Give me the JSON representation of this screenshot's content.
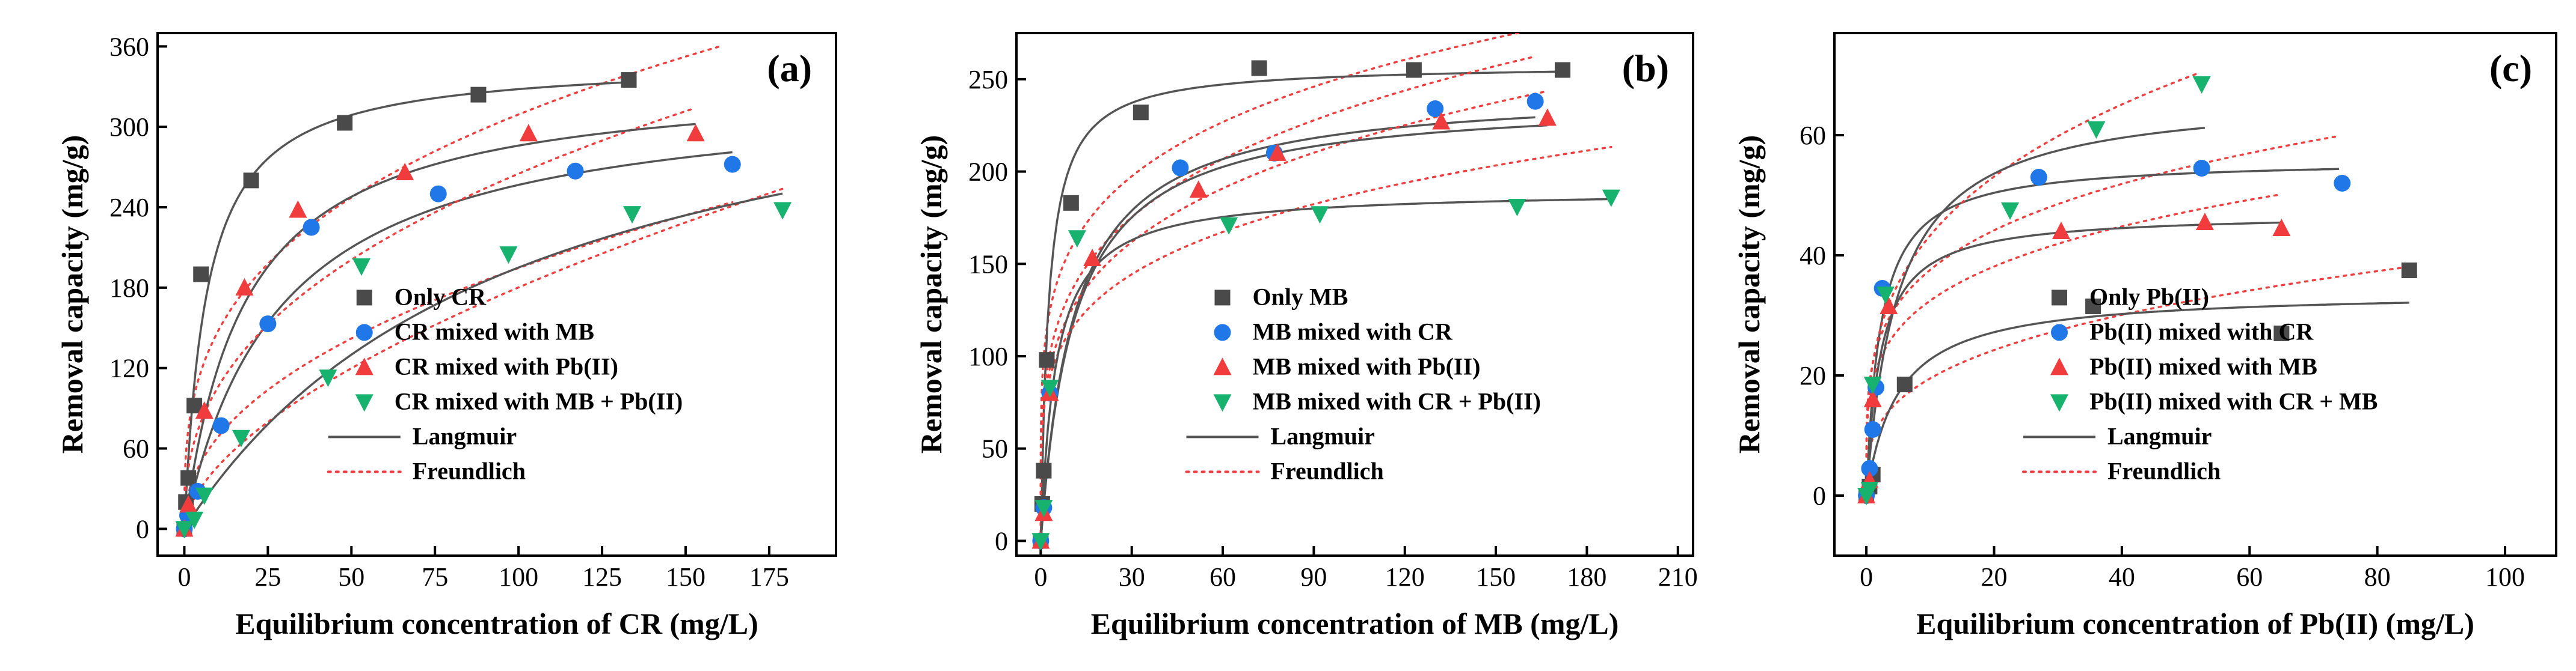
{
  "figure": {
    "panel_count": 3
  },
  "chart_data": [
    {
      "type": "scatter",
      "panel_label": "(a)",
      "xlabel": "Equilibrium concentration of CR (mg/L)",
      "ylabel": "Removal capacity (mg/g)",
      "xlim": [
        -8,
        195
      ],
      "ylim": [
        -20,
        370
      ],
      "xticks": [
        0,
        25,
        50,
        75,
        100,
        125,
        150,
        175
      ],
      "yticks": [
        0,
        60,
        120,
        180,
        240,
        300,
        360
      ],
      "legend_position": "bottom-center",
      "series": [
        {
          "name": "Only CR",
          "marker": "square",
          "color": "#4a4a4a",
          "x": [
            0,
            0.5,
            1.2,
            3,
            5,
            20,
            48,
            88,
            133
          ],
          "y": [
            0,
            20,
            38,
            92,
            190,
            260,
            303,
            324,
            335
          ],
          "langmuir": {
            "qm": 350,
            "kl": 0.15,
            "xmax": 133
          },
          "freundlich": {
            "kf": 70,
            "n": 3.1,
            "xmax": 160
          }
        },
        {
          "name": "CR mixed with MB",
          "marker": "circle",
          "color": "#1f77e8",
          "x": [
            0,
            1,
            4,
            11,
            25,
            38,
            76,
            117,
            164
          ],
          "y": [
            0,
            10,
            28,
            77,
            153,
            225,
            250,
            267,
            272
          ],
          "langmuir": {
            "qm": 330,
            "kl": 0.035,
            "xmax": 164
          },
          "freundlich": {
            "kf": 24,
            "n": 2.2,
            "xmax": 164
          }
        },
        {
          "name": "CR mixed with Pb(II)",
          "marker": "triangle-up",
          "color": "#f03c3c",
          "x": [
            0,
            1.2,
            6,
            18,
            34,
            66,
            103,
            153
          ],
          "y": [
            0,
            18,
            88,
            180,
            238,
            266,
            295,
            295
          ],
          "langmuir": {
            "qm": 338,
            "kl": 0.055,
            "xmax": 153
          },
          "freundlich": {
            "kf": 42,
            "n": 2.5,
            "xmax": 153
          }
        },
        {
          "name": "CR mixed with MB + Pb(II)",
          "marker": "triangle-down",
          "color": "#16b26e",
          "x": [
            0,
            3,
            6,
            17,
            43,
            53,
            97,
            134,
            179
          ],
          "y": [
            0,
            7,
            25,
            68,
            113,
            196,
            205,
            235,
            238
          ],
          "langmuir": {
            "qm": 390,
            "kl": 0.01,
            "xmax": 179
          },
          "freundlich": {
            "kf": 12,
            "n": 1.7,
            "xmax": 179
          }
        }
      ],
      "legend_entries": [
        "Only CR",
        "CR mixed with MB",
        "CR mixed with Pb(II)",
        "CR mixed with MB + Pb(II)",
        "Langmuir",
        "Freundlich"
      ]
    },
    {
      "type": "scatter",
      "panel_label": "(b)",
      "xlabel": "Equilibrium concentration of MB (mg/L)",
      "ylabel": "Removal  capacity (mg/g)",
      "xlim": [
        -8,
        215
      ],
      "ylim": [
        -8,
        275
      ],
      "xticks": [
        0,
        30,
        60,
        90,
        120,
        150,
        180,
        210
      ],
      "yticks": [
        0,
        50,
        100,
        150,
        200,
        250
      ],
      "legend_position": "bottom-center",
      "series": [
        {
          "name": "Only MB",
          "marker": "square",
          "color": "#4a4a4a",
          "x": [
            0,
            0.5,
            1,
            2,
            10,
            33,
            72,
            123,
            172
          ],
          "y": [
            0,
            20,
            38,
            98,
            183,
            232,
            256,
            255,
            255
          ],
          "langmuir": {
            "qm": 258,
            "kl": 0.38,
            "xmax": 172
          },
          "freundlich": {
            "kf": 100,
            "n": 5,
            "xmax": 170
          }
        },
        {
          "name": "MB mixed with CR",
          "marker": "circle",
          "color": "#1f77e8",
          "x": [
            0,
            1,
            3,
            46,
            77,
            130,
            163
          ],
          "y": [
            0,
            18,
            80,
            202,
            210,
            234,
            238
          ],
          "langmuir": {
            "qm": 245,
            "kl": 0.09,
            "xmax": 163
          },
          "freundlich": {
            "kf": 78,
            "n": 4.2,
            "xmax": 163
          }
        },
        {
          "name": "MB mixed with Pb(II)",
          "marker": "triangle-up",
          "color": "#f03c3c",
          "x": [
            0,
            1,
            3,
            17,
            52,
            78,
            132,
            167
          ],
          "y": [
            0,
            15,
            80,
            153,
            190,
            210,
            227,
            229
          ],
          "langmuir": {
            "qm": 240,
            "kl": 0.09,
            "xmax": 167
          },
          "freundlich": {
            "kf": 72,
            "n": 4.2,
            "xmax": 167
          }
        },
        {
          "name": "MB mixed with CR + Pb(II)",
          "marker": "triangle-down",
          "color": "#16b26e",
          "x": [
            0,
            1,
            3,
            12,
            62,
            92,
            157,
            188
          ],
          "y": [
            0,
            18,
            83,
            164,
            171,
            177,
            181,
            186
          ],
          "langmuir": {
            "qm": 190,
            "kl": 0.2,
            "xmax": 188
          },
          "freundlich": {
            "kf": 70,
            "n": 4.7,
            "xmax": 188
          }
        }
      ],
      "legend_entries": [
        "Only MB",
        "MB mixed with CR",
        "MB mixed with Pb(II)",
        "MB mixed with CR + Pb(II)",
        "Langmuir",
        "Freundlich"
      ]
    },
    {
      "type": "scatter",
      "panel_label": "(c)",
      "xlabel": "Equilibrium concentration of Pb(II) (mg/L)",
      "ylabel": "Removal capacity (mg/g)",
      "xlim": [
        -5,
        108
      ],
      "ylim": [
        -10,
        77
      ],
      "xticks": [
        0,
        20,
        40,
        60,
        80,
        100
      ],
      "yticks": [
        0,
        20,
        40,
        60
      ],
      "legend_position": "bottom-center",
      "series": [
        {
          "name": "Only Pb(II)",
          "marker": "square",
          "color": "#4a4a4a",
          "x": [
            0,
            0.5,
            1,
            6,
            35.5,
            65,
            85
          ],
          "y": [
            0,
            1.5,
            3.5,
            18.5,
            31.5,
            27,
            37.5
          ],
          "langmuir": {
            "qm": 34,
            "kl": 0.2,
            "xmax": 85
          },
          "freundlich": {
            "kf": 9.5,
            "n": 3.2,
            "xmax": 85
          }
        },
        {
          "name": "Pb(II) mixed with CR",
          "marker": "circle",
          "color": "#1f77e8",
          "x": [
            0,
            0.5,
            1,
            1.5,
            2.5,
            27,
            52.5,
            74.5
          ],
          "y": [
            0,
            4.5,
            11,
            18,
            34.5,
            53,
            54.5,
            52
          ],
          "langmuir": {
            "qm": 56,
            "kl": 0.45,
            "xmax": 74
          },
          "freundlich": {
            "kf": 22,
            "n": 4.3,
            "xmax": 74
          }
        },
        {
          "name": "Pb(II) mixed with MB",
          "marker": "triangle-up",
          "color": "#f03c3c",
          "x": [
            0,
            0.5,
            1,
            3.5,
            30.5,
            53,
            65
          ],
          "y": [
            0,
            2.5,
            16,
            31.5,
            44,
            45.5,
            44.5
          ],
          "langmuir": {
            "qm": 47,
            "kl": 0.45,
            "xmax": 65
          },
          "freundlich": {
            "kf": 19,
            "n": 4.3,
            "xmax": 65
          }
        },
        {
          "name": "Pb(II) mixed with CR + MB",
          "marker": "triangle-down",
          "color": "#16b26e",
          "x": [
            0,
            0.5,
            1,
            3,
            22.5,
            36,
            52.5
          ],
          "y": [
            0,
            1,
            18.5,
            33.5,
            47.5,
            61,
            68.5
          ],
          "langmuir": {
            "qm": 67,
            "kl": 0.2,
            "xmax": 53
          },
          "freundlich": {
            "kf": 22,
            "n": 3.4,
            "xmax": 52
          }
        }
      ],
      "legend_entries": [
        "Only Pb(II)",
        "Pb(II) mixed with CR",
        "Pb(II) mixed with MB",
        "Pb(II) mixed with CR + MB",
        "Langmuir",
        "Freundlich"
      ]
    }
  ]
}
